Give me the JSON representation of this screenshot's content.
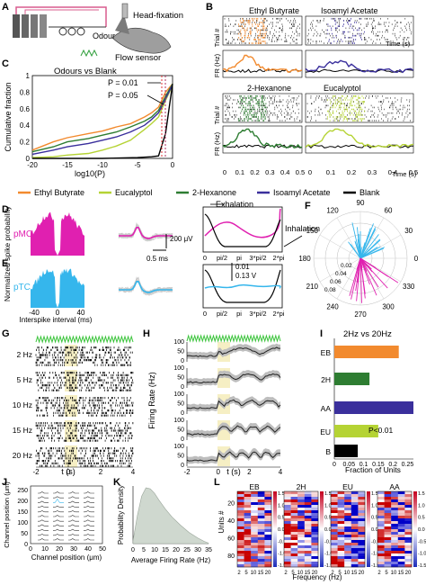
{
  "panels": {
    "A": {
      "letter": "A",
      "labels": {
        "head": "Head-fixation",
        "odour": "Odour",
        "flow": "Flow sensor"
      }
    },
    "B": {
      "letter": "B",
      "odours": [
        "Ethyl Butyrate",
        "Isoamyl Acetate",
        "2-Hexanone",
        "Eucalyptol"
      ],
      "trial_label": "Trial #",
      "fr_label": "FR (Hz)",
      "time_label": "Time (s)",
      "x_ticks": [
        "0",
        "0.1",
        "0.2",
        "0.3",
        "0.4",
        "0.5"
      ]
    },
    "C": {
      "letter": "C",
      "title": "Odours vs Blank",
      "ylabel": "Cumulative fraction",
      "xlabel": "log10(P)",
      "x_ticks": [
        "-20",
        "-15",
        "-10",
        "-5",
        "0"
      ],
      "y_ticks": [
        "0",
        "0.2",
        "0.4",
        "0.6",
        "0.8",
        "1"
      ],
      "annotations": [
        "P = 0.01",
        "P = 0.05"
      ]
    },
    "legend": {
      "items": [
        {
          "name": "Ethyl Butyrate",
          "color": "#f28a2e"
        },
        {
          "name": "Eucalyptol",
          "color": "#b5d334"
        },
        {
          "name": "2-Hexanone",
          "color": "#2e7d32"
        },
        {
          "name": "Isoamyl Acetate",
          "color": "#3a2f9c"
        },
        {
          "name": "Blank",
          "color": "#000000"
        }
      ]
    },
    "D": {
      "letter": "D",
      "type": "pMC",
      "ylabel": "Normalized spike probability",
      "scale_v": "200 μV",
      "scale_t": "0.5 ms",
      "exhalation": "Exhalation",
      "inhalation": "Inhalation"
    },
    "E": {
      "letter": "E",
      "type": "pTC",
      "xlabel": "Interspike interval (ms)",
      "x_ticks": [
        "-40",
        "0",
        "40"
      ],
      "phase_ticks": [
        "0",
        "pi/2",
        "pi",
        "3*pi/2",
        "2*pi"
      ],
      "scale_a": "0.01",
      "scale_b": "0.13 V"
    },
    "F": {
      "letter": "F",
      "angles": [
        "90",
        "60",
        "30",
        "0",
        "330",
        "300",
        "270",
        "240",
        "210",
        "180",
        "150",
        "120"
      ],
      "radii": [
        "0.02",
        "0.04",
        "0.06",
        "0.08"
      ]
    },
    "G": {
      "letter": "G",
      "rows": [
        "2 Hz",
        "5 Hz",
        "10 Hz",
        "15 Hz",
        "20 Hz"
      ],
      "xlabel": "t (s)",
      "x_ticks": [
        "-2",
        "0",
        "2",
        "4"
      ]
    },
    "H": {
      "letter": "H",
      "ylabel": "Firing Rate (Hz)",
      "y_ticks": [
        "0",
        "50",
        "100"
      ],
      "xlabel": "t (s)",
      "x_ticks": [
        "-2",
        "0",
        "2",
        "4"
      ]
    },
    "I": {
      "letter": "I",
      "title": "2Hz vs 20Hz",
      "xlabel": "Fraction of Units",
      "x_ticks": [
        "0",
        "0.05",
        "0.1",
        "0.15",
        "0.2",
        "0.25"
      ],
      "annotation": "P<0.01"
    },
    "J": {
      "letter": "J",
      "ylabel": "Channel position (μm)",
      "xlabel": "Channel position (μm)",
      "y_ticks": [
        "0",
        "50",
        "100",
        "150",
        "200",
        "250"
      ],
      "x_ticks": [
        "0",
        "10",
        "20",
        "30",
        "40",
        "50"
      ]
    },
    "K": {
      "letter": "K",
      "ylabel": "Probability Density",
      "xlabel": "Average Firing Rate (Hz)",
      "x_ticks": [
        "0",
        "5",
        "10",
        "15",
        "20",
        "25",
        "30",
        "35"
      ]
    },
    "L": {
      "letter": "L",
      "titles": [
        "EB",
        "2H",
        "EU",
        "AA"
      ],
      "ylabel": "Units #",
      "xlabel": "Frequency (Hz)",
      "y_ticks": [
        "20",
        "40",
        "60",
        "80"
      ],
      "x_ticks": [
        "2",
        "5",
        "10",
        "15",
        "20"
      ],
      "cbar_ticks": [
        "1.5",
        "1.0",
        "0.5",
        "0.0",
        "-0.5",
        "-1.0",
        "-1.5"
      ]
    }
  },
  "chart_data": [
    {
      "type": "line",
      "panel": "C",
      "title": "Odours vs Blank",
      "xlabel": "log10(P)",
      "ylabel": "Cumulative fraction",
      "xlim": [
        -20,
        0
      ],
      "ylim": [
        0,
        1
      ],
      "series": [
        {
          "name": "Ethyl Butyrate",
          "x": [
            -20,
            -17,
            -15,
            -12,
            -10,
            -8,
            -6,
            -4,
            -3,
            -2,
            -1,
            0
          ],
          "y": [
            0.1,
            0.2,
            0.25,
            0.3,
            0.33,
            0.38,
            0.42,
            0.5,
            0.55,
            0.62,
            0.8,
            0.9
          ]
        },
        {
          "name": "Eucalyptol",
          "x": [
            -20,
            -17,
            -15,
            -12,
            -10,
            -8,
            -6,
            -4,
            -3,
            -2,
            -1,
            0
          ],
          "y": [
            0.01,
            0.02,
            0.04,
            0.06,
            0.1,
            0.15,
            0.22,
            0.35,
            0.42,
            0.5,
            0.7,
            0.88
          ]
        },
        {
          "name": "2-Hexanone",
          "x": [
            -20,
            -17,
            -15,
            -12,
            -10,
            -8,
            -6,
            -4,
            -3,
            -2,
            -1,
            0
          ],
          "y": [
            0.08,
            0.14,
            0.2,
            0.24,
            0.28,
            0.32,
            0.38,
            0.45,
            0.5,
            0.58,
            0.75,
            0.9
          ]
        },
        {
          "name": "Isoamyl Acetate",
          "x": [
            -20,
            -17,
            -15,
            -12,
            -10,
            -8,
            -6,
            -4,
            -3,
            -2,
            -1,
            0
          ],
          "y": [
            0.05,
            0.1,
            0.14,
            0.18,
            0.22,
            0.26,
            0.32,
            0.4,
            0.47,
            0.55,
            0.72,
            0.89
          ]
        },
        {
          "name": "Blank",
          "x": [
            -20,
            -10,
            -5,
            -3,
            -2,
            -1,
            0
          ],
          "y": [
            0,
            0,
            0.01,
            0.02,
            0.03,
            0.3,
            0.9
          ]
        }
      ]
    },
    {
      "type": "bar",
      "panel": "I",
      "title": "2Hz vs 20Hz",
      "categories": [
        "EB",
        "2H",
        "AA",
        "EU",
        "B"
      ],
      "values": [
        0.22,
        0.12,
        0.27,
        0.15,
        0.08
      ],
      "xlim": [
        0,
        0.27
      ],
      "xlabel": "Fraction of Units"
    },
    {
      "type": "area",
      "panel": "K",
      "xlabel": "Average Firing Rate (Hz)",
      "ylabel": "Probability Density",
      "x": [
        0,
        2,
        4,
        6,
        8,
        10,
        12,
        15,
        18,
        22,
        26,
        30,
        33,
        35
      ],
      "y": [
        0.05,
        0.5,
        0.85,
        1.0,
        0.98,
        0.9,
        0.78,
        0.62,
        0.48,
        0.33,
        0.2,
        0.1,
        0.04,
        0.01
      ]
    }
  ]
}
